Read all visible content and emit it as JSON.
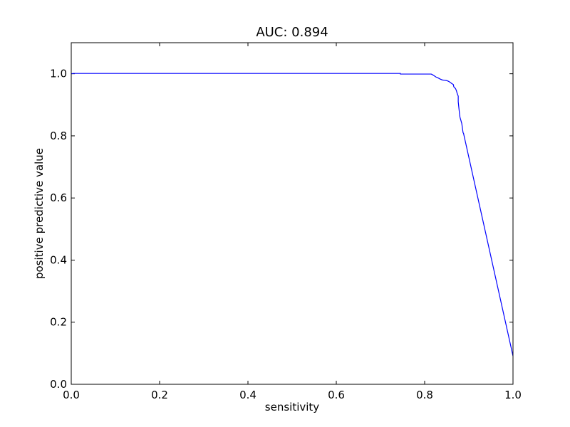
{
  "chart_data": {
    "type": "line",
    "title": "AUC: 0.894",
    "xlabel": "sensitivity",
    "ylabel": "positive predictive value",
    "xlim": [
      0.0,
      1.0
    ],
    "ylim": [
      0.0,
      1.1
    ],
    "x_ticks": [
      0.0,
      0.2,
      0.4,
      0.6,
      0.8,
      1.0
    ],
    "y_ticks": [
      0.0,
      0.2,
      0.4,
      0.6,
      0.8,
      1.0
    ],
    "x_tick_labels": [
      "0.0",
      "0.2",
      "0.4",
      "0.6",
      "0.8",
      "1.0"
    ],
    "y_tick_labels": [
      "0.0",
      "0.2",
      "0.4",
      "0.6",
      "0.8",
      "1.0"
    ],
    "grid": false,
    "legend": "none",
    "series": [
      {
        "color": "#0000ff",
        "x": [
          0.0,
          0.005,
          0.745,
          0.745,
          0.815,
          0.82,
          0.825,
          0.83,
          0.835,
          0.84,
          0.845,
          0.85,
          0.855,
          0.86,
          0.865,
          0.866,
          0.87,
          0.872,
          0.874,
          0.876,
          0.876,
          0.879,
          0.88,
          0.881,
          0.882,
          0.884,
          0.885,
          0.886,
          0.887,
          0.888,
          1.0
        ],
        "y": [
          1.0,
          1.001,
          1.001,
          0.999,
          0.999,
          0.995,
          0.99,
          0.987,
          0.983,
          0.98,
          0.979,
          0.978,
          0.975,
          0.97,
          0.965,
          0.958,
          0.952,
          0.945,
          0.935,
          0.928,
          0.91,
          0.87,
          0.86,
          0.855,
          0.85,
          0.84,
          0.83,
          0.82,
          0.81,
          0.808,
          0.091
        ]
      }
    ]
  }
}
